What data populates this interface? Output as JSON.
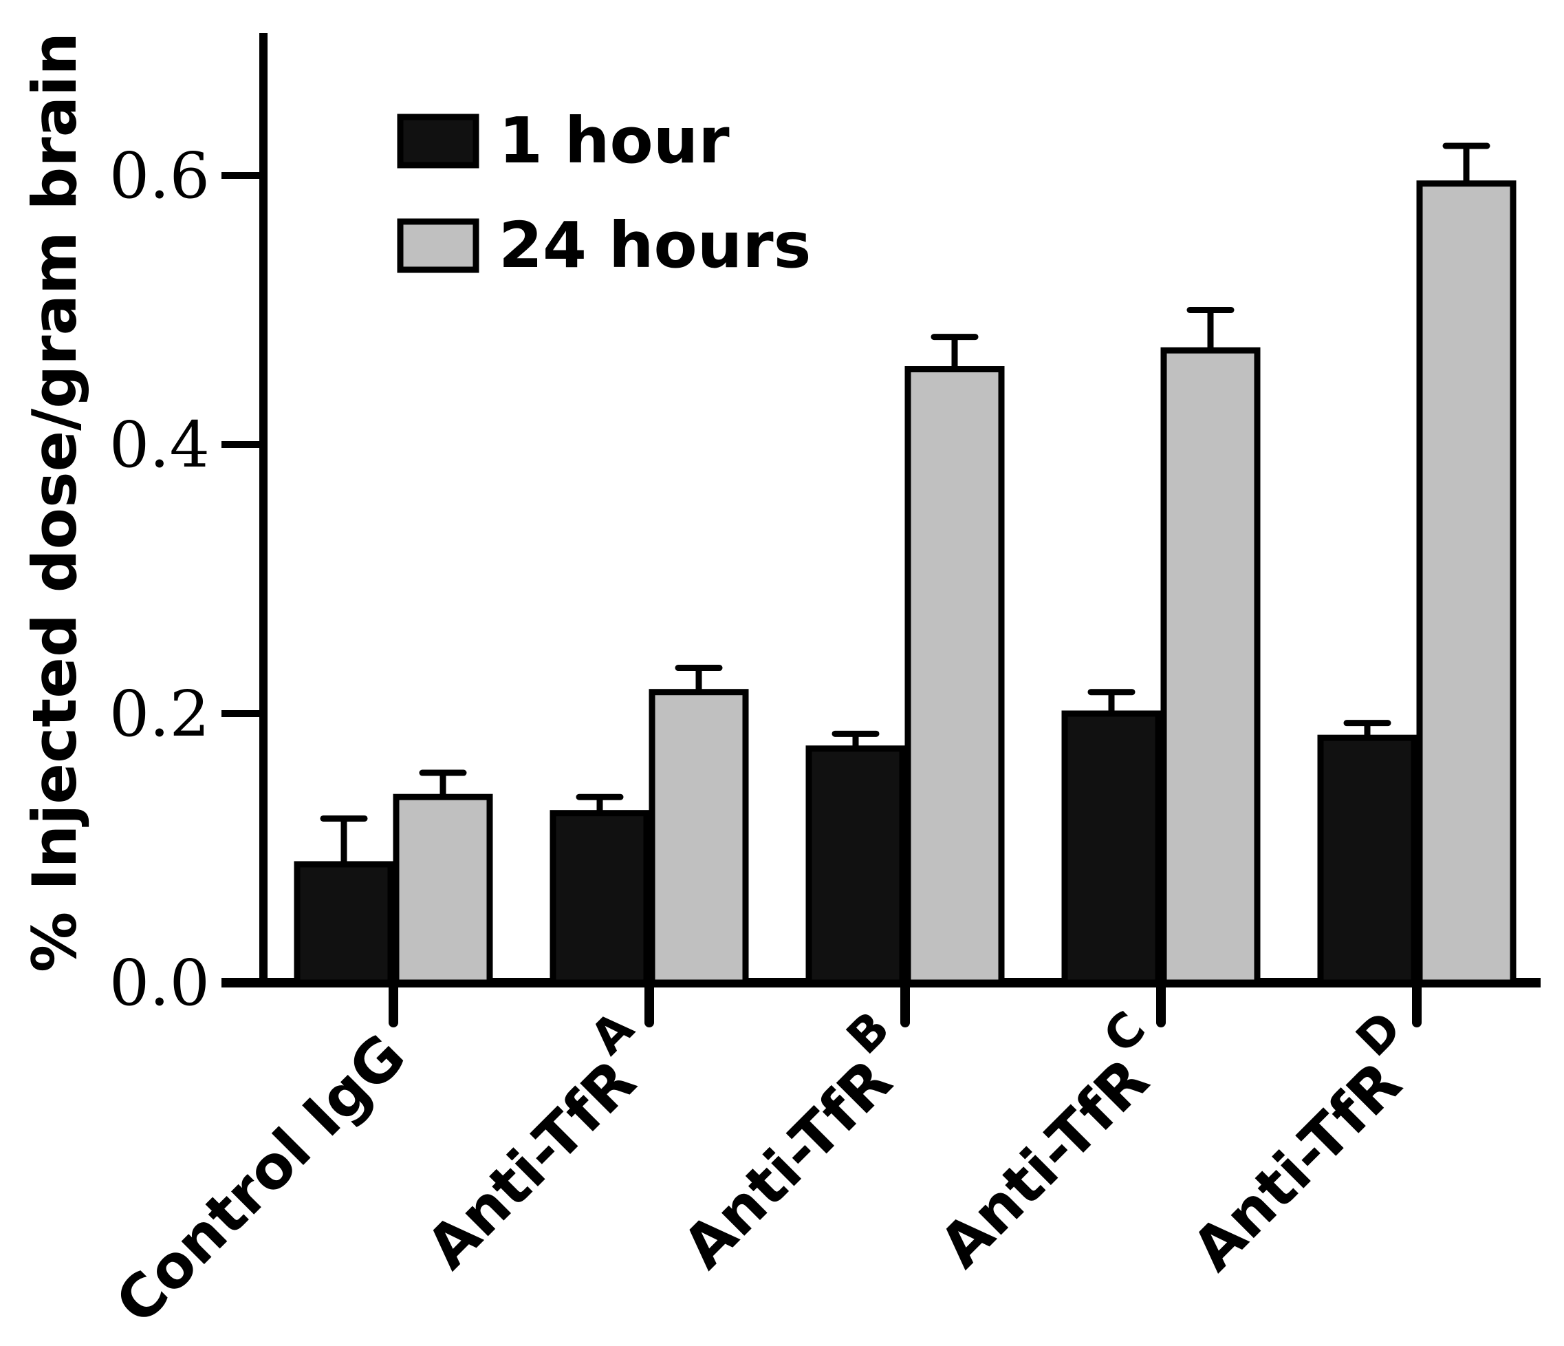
{
  "chart_data": {
    "type": "bar",
    "title": "",
    "xlabel": "",
    "ylabel": "% Injected dose/gram brain",
    "ylim": [
      0,
      0.7
    ],
    "yticks": [
      "0.0",
      "0.2",
      "0.4",
      "0.6"
    ],
    "categories": [
      {
        "base": "Control IgG",
        "sup": ""
      },
      {
        "base": "Anti-TfR",
        "sup": "A"
      },
      {
        "base": "Anti-TfR",
        "sup": "B"
      },
      {
        "base": "Anti-TfR",
        "sup": "C"
      },
      {
        "base": "Anti-TfR",
        "sup": "D"
      }
    ],
    "series": [
      {
        "name": "1 hour",
        "color": "#111111",
        "values": [
          0.088,
          0.126,
          0.174,
          0.2,
          0.182
        ],
        "errors": [
          0.034,
          0.012,
          0.011,
          0.016,
          0.011
        ]
      },
      {
        "name": "24 hours",
        "color": "#c0c0c0",
        "values": [
          0.138,
          0.216,
          0.456,
          0.47,
          0.594
        ],
        "errors": [
          0.018,
          0.018,
          0.024,
          0.03,
          0.028
        ]
      }
    ],
    "legend_position": "top-left",
    "grid": false
  }
}
